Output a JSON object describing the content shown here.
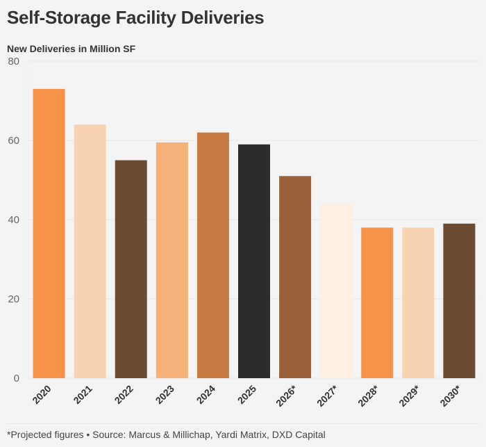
{
  "header": {
    "title": "Self-Storage Facility Deliveries",
    "subtitle": "New Deliveries in Million SF"
  },
  "footer": {
    "note": "*Projected figures • Source: Marcus & Millichap, Yardi Matrix, DXD Capital"
  },
  "chart_data": {
    "type": "bar",
    "title": "Self-Storage Facility Deliveries",
    "subtitle": "New Deliveries in Million SF",
    "xlabel": "",
    "ylabel": "New Deliveries in Million SF",
    "categories": [
      "2020",
      "2021",
      "2022",
      "2023",
      "2024",
      "2025",
      "2026*",
      "2027*",
      "2028*",
      "2029*",
      "2030*"
    ],
    "values": [
      73,
      64,
      55,
      59.5,
      62,
      59,
      51,
      44,
      38,
      38,
      39
    ],
    "colors": [
      "#f6924a",
      "#f8d3b2",
      "#6c4b33",
      "#f6b27a",
      "#c87a43",
      "#2c2c2c",
      "#9a6039",
      "#fdefe2",
      "#f6924a",
      "#f8d3b2",
      "#6c4b33"
    ],
    "ylim": [
      0,
      80
    ],
    "yticks": [
      0,
      20,
      40,
      60,
      80
    ],
    "grid": true,
    "legend": "none",
    "annotations": [
      "*Projected figures"
    ]
  }
}
